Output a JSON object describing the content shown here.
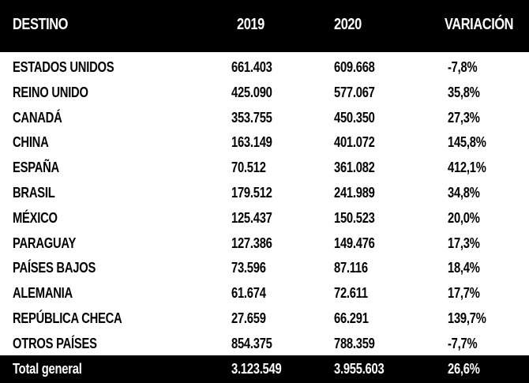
{
  "table": {
    "headers": [
      "DESTINO",
      "2019",
      "2020",
      "VARIACIÓN"
    ],
    "rows": [
      [
        "ESTADOS UNIDOS",
        "661.403",
        "609.668",
        "-7,8%"
      ],
      [
        "REINO UNIDO",
        "425.090",
        "577.067",
        "35,8%"
      ],
      [
        "CANADÁ",
        "353.755",
        "450.350",
        "27,3%"
      ],
      [
        "CHINA",
        "163.149",
        "401.072",
        "145,8%"
      ],
      [
        "ESPAÑA",
        "70.512",
        "361.082",
        "412,1%"
      ],
      [
        "BRASIL",
        "179.512",
        "241.989",
        "34,8%"
      ],
      [
        "MÉXICO",
        "125.437",
        "150.523",
        "20,0%"
      ],
      [
        "PARAGUAY",
        "127.386",
        "149.476",
        "17,3%"
      ],
      [
        "PAÍSES BAJOS",
        "73.596",
        "87.116",
        "18,4%"
      ],
      [
        "ALEMANIA",
        "61.674",
        "72.611",
        "17,7%"
      ],
      [
        "REPÚBLICA CHECA",
        "27.659",
        "66.291",
        "139,7%"
      ],
      [
        "OTROS PAÍSES",
        "854.375",
        "788.359",
        "-7,7%"
      ]
    ],
    "total": [
      "Total general",
      "3.123.549",
      "3.955.603",
      "26,6%"
    ]
  }
}
